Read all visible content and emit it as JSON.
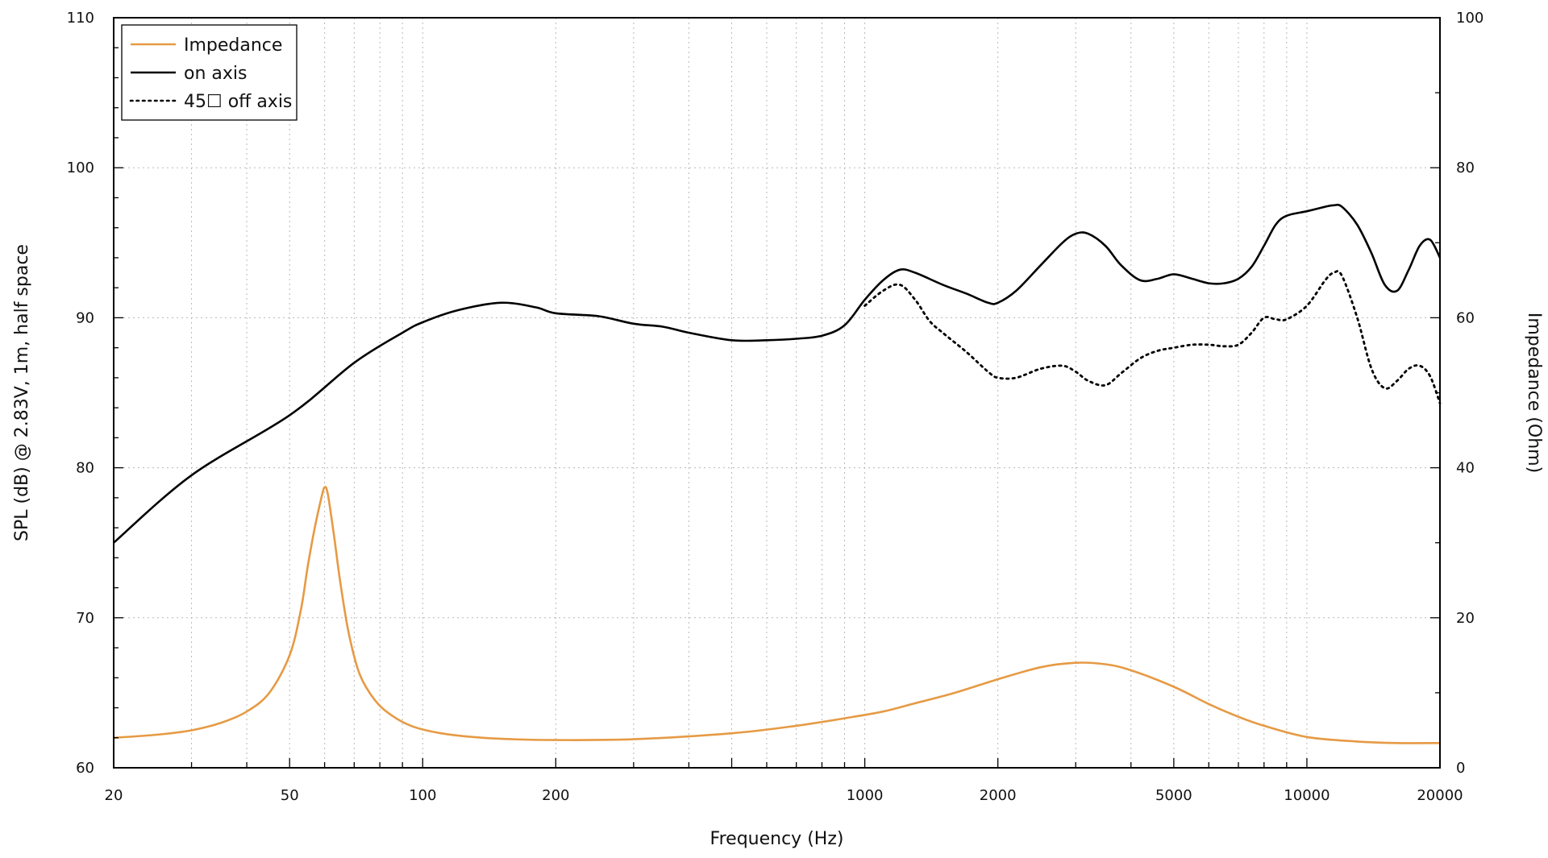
{
  "chart_data": {
    "type": "line",
    "xlabel": "Frequency (Hz)",
    "ylabel": "SPL (dB) @ 2.83V, 1m, half space",
    "y2label": "Impedance (Ohm)",
    "xscale": "log",
    "xlim": [
      20,
      20000
    ],
    "ylim": [
      60,
      110
    ],
    "y2lim": [
      0,
      100
    ],
    "grid": true,
    "legend_position": "top-left",
    "x_tick_labels": [
      "20",
      "50",
      "100",
      "200",
      "1000",
      "2000",
      "5000",
      "10000",
      "20000"
    ],
    "y_tick_labels": [
      "60",
      "70",
      "80",
      "90",
      "100",
      "110"
    ],
    "y2_tick_labels": [
      "0",
      "20",
      "40",
      "60",
      "80",
      "100"
    ],
    "series": [
      {
        "name": "Impedance",
        "axis": "right",
        "color": "#e69a44",
        "style": "solid",
        "x": [
          20,
          25,
          30,
          35,
          40,
          45,
          50,
          53,
          55,
          57,
          59,
          60,
          61,
          63,
          65,
          68,
          72,
          78,
          85,
          95,
          110,
          130,
          160,
          200,
          300,
          500,
          700,
          900,
          1100,
          1300,
          1600,
          2000,
          2500,
          3000,
          3500,
          4000,
          5000,
          6000,
          7000,
          8000,
          10000,
          13000,
          16000,
          20000
        ],
        "y": [
          4,
          4.4,
          5,
          6,
          7.5,
          10,
          15,
          21,
          27,
          32,
          36,
          37.4,
          36.5,
          31,
          25,
          18,
          12.5,
          9,
          7,
          5.5,
          4.6,
          4.1,
          3.8,
          3.7,
          3.8,
          4.6,
          5.6,
          6.6,
          7.5,
          8.6,
          10,
          11.8,
          13.4,
          14,
          13.8,
          13,
          10.8,
          8.5,
          6.8,
          5.6,
          4.1,
          3.5,
          3.3,
          3.3
        ]
      },
      {
        "name": "on axis",
        "axis": "left",
        "color": "#000000",
        "style": "solid",
        "x": [
          20,
          30,
          50,
          70,
          90,
          100,
          120,
          150,
          180,
          200,
          250,
          300,
          350,
          400,
          500,
          600,
          700,
          800,
          900,
          1000,
          1100,
          1200,
          1300,
          1500,
          1700,
          1900,
          2000,
          2200,
          2500,
          2800,
          3000,
          3200,
          3500,
          3800,
          4200,
          4600,
          5000,
          5500,
          6000,
          6500,
          7000,
          7500,
          8000,
          8500,
          9000,
          10000,
          11000,
          11500,
          12000,
          13000,
          14000,
          15000,
          16000,
          17000,
          18000,
          19000,
          20000
        ],
        "y": [
          75,
          79.5,
          83.5,
          87,
          89,
          89.7,
          90.5,
          91,
          90.7,
          90.3,
          90.1,
          89.6,
          89.4,
          89,
          88.5,
          88.5,
          88.6,
          88.8,
          89.5,
          91.2,
          92.5,
          93.2,
          93,
          92.2,
          91.6,
          91,
          91,
          91.8,
          93.5,
          95,
          95.6,
          95.6,
          94.8,
          93.5,
          92.5,
          92.6,
          92.9,
          92.6,
          92.3,
          92.3,
          92.6,
          93.4,
          94.8,
          96.2,
          96.8,
          97.1,
          97.4,
          97.5,
          97.4,
          96.2,
          94.3,
          92.2,
          91.8,
          93.2,
          94.8,
          95.2,
          94
        ]
      },
      {
        "name": "45☐ off axis",
        "axis": "left",
        "color": "#000000",
        "style": "dotted",
        "x": [
          1000,
          1100,
          1200,
          1300,
          1400,
          1500,
          1700,
          1900,
          2000,
          2200,
          2500,
          2800,
          3000,
          3200,
          3500,
          3800,
          4200,
          4600,
          5000,
          5500,
          6000,
          6500,
          7000,
          7500,
          8000,
          8500,
          9000,
          10000,
          11000,
          11500,
          12000,
          13000,
          14000,
          15000,
          16000,
          17000,
          18000,
          19000,
          20000
        ],
        "y": [
          90.8,
          91.8,
          92.2,
          91.2,
          89.8,
          89,
          87.7,
          86.4,
          86,
          86,
          86.6,
          86.8,
          86.4,
          85.8,
          85.5,
          86.3,
          87.3,
          87.8,
          88,
          88.2,
          88.2,
          88.1,
          88.2,
          89,
          90,
          89.9,
          89.9,
          90.8,
          92.5,
          93,
          92.8,
          90,
          86.6,
          85.3,
          85.8,
          86.6,
          86.8,
          86.1,
          84.3
        ]
      }
    ]
  }
}
